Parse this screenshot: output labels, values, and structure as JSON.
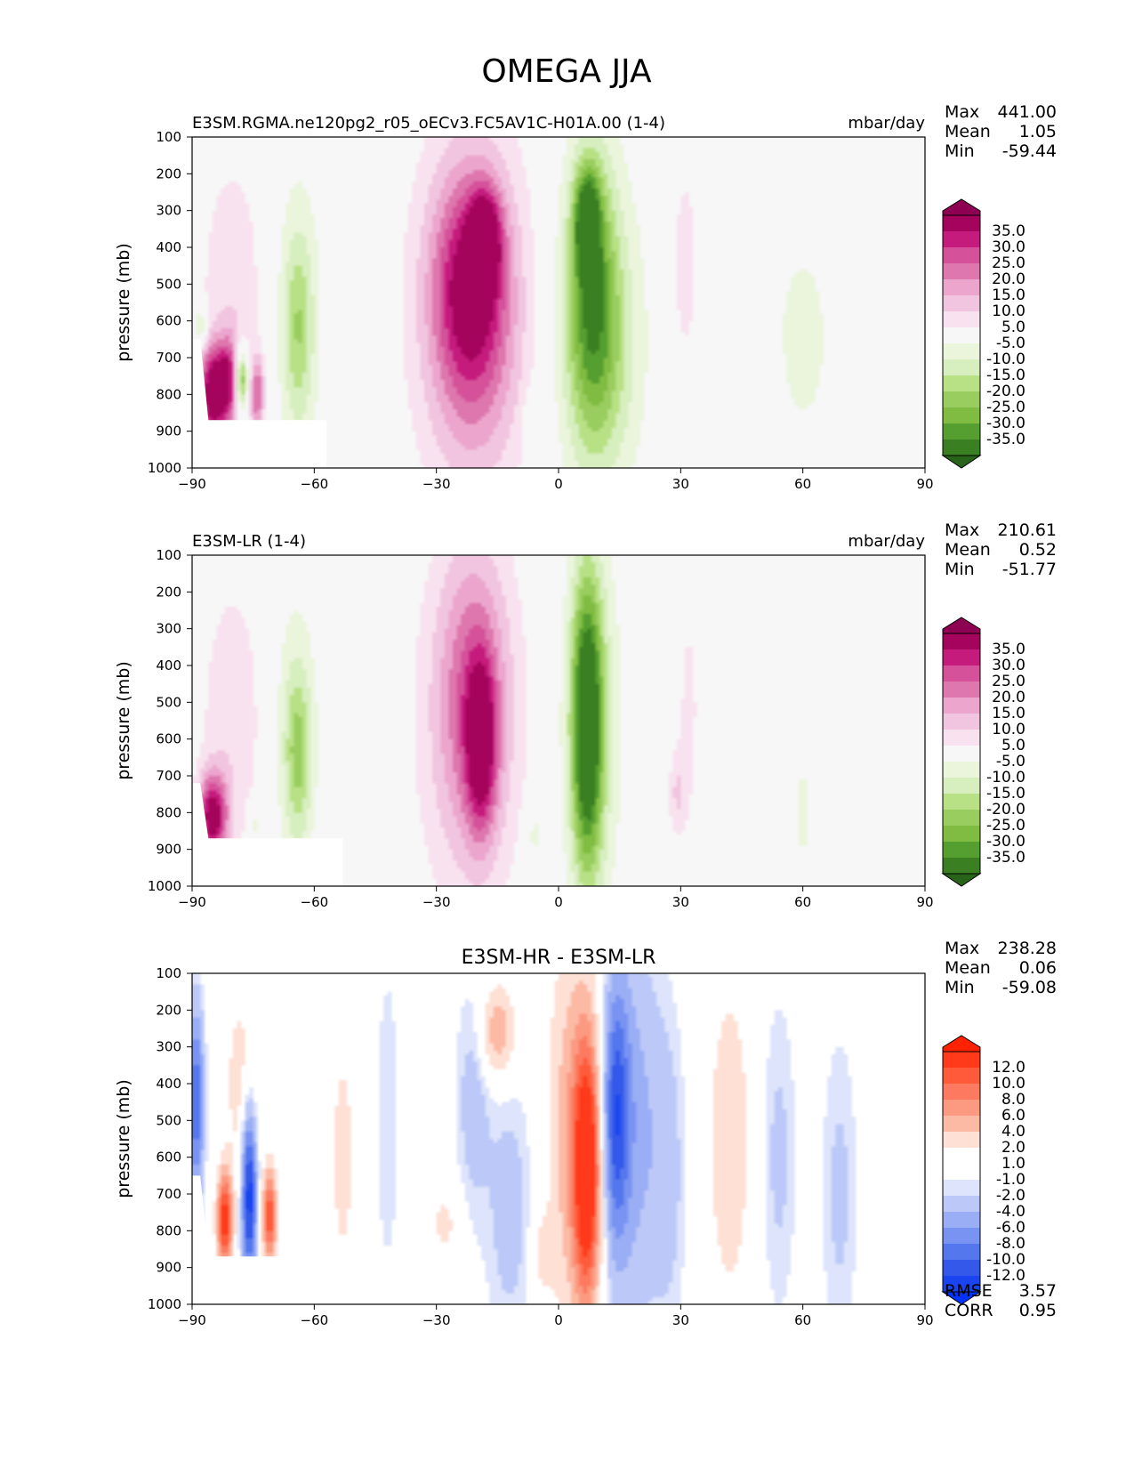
{
  "figure_title": "OMEGA JJA",
  "colors": {
    "background": "#f7f7f6",
    "diff_background": "#fdfdfd",
    "frame": "#000000",
    "mask": "#ffffff"
  },
  "icons": [
    "colorbar-extend-triangle"
  ],
  "chart_data": [
    {
      "type": "heatmap",
      "name": "panel-test",
      "title": "",
      "left_title": "E3SM.RGMA.ne120pg2_r05_oECv3.FC5AV1C-H01A.00 (1-4)",
      "units": "mbar/day",
      "xlabel": "",
      "ylabel": "pressure (mb)",
      "xlim": [
        -90,
        90
      ],
      "ylim": [
        1000,
        100
      ],
      "x_ticks": [
        -90,
        -60,
        -30,
        0,
        30,
        60,
        90
      ],
      "x_tick_labels": [
        "−90",
        "−60",
        "−30",
        "0",
        "30",
        "60",
        "90"
      ],
      "y_ticks": [
        100,
        200,
        300,
        400,
        500,
        600,
        700,
        800,
        900,
        1000
      ],
      "y_tick_labels": [
        "100",
        "200",
        "300",
        "400",
        "500",
        "600",
        "700",
        "800",
        "900",
        "1000"
      ],
      "stats": {
        "labels": [
          "Max",
          "Mean",
          "Min"
        ],
        "values": [
          "441.00",
          "1.05",
          "-59.44"
        ]
      },
      "colorbar": {
        "labels": [
          "35.0",
          "30.0",
          "25.0",
          "20.0",
          "15.0",
          "10.0",
          "5.0",
          "-5.0",
          "-10.0",
          "-15.0",
          "-20.0",
          "-25.0",
          "-30.0",
          "-35.0"
        ],
        "top_color": "#8e0152",
        "bottom_color": "#276419",
        "colors": [
          "#a4045c",
          "#c51b7d",
          "#d5519a",
          "#de77ae",
          "#eca6cd",
          "#f1c5e0",
          "#f9e2ef",
          "#f7f7f7",
          "#eaf5dc",
          "#d7eebf",
          "#b8e186",
          "#9acd5f",
          "#7fbc41",
          "#559e30",
          "#3a7f21"
        ]
      },
      "features": [
        {
          "x": -18,
          "p": 380,
          "v": 30,
          "sx": 2.5,
          "sp": 90
        },
        {
          "x": -22,
          "p": 500,
          "v": 20,
          "sx": 6,
          "sp": 200
        },
        {
          "x": -21,
          "p": 600,
          "v": 16,
          "sx": 8,
          "sp": 300
        },
        {
          "x": -21,
          "p": 550,
          "v": 9,
          "sx": 12,
          "sp": 390
        },
        {
          "x": 7,
          "p": 330,
          "v": -33,
          "sx": 2,
          "sp": 90
        },
        {
          "x": 8,
          "p": 500,
          "v": -22,
          "sx": 4,
          "sp": 260
        },
        {
          "x": 9,
          "p": 600,
          "v": -12,
          "sx": 8,
          "sp": 360
        },
        {
          "x": 11,
          "p": 700,
          "v": -8,
          "sx": 6,
          "sp": 220
        },
        {
          "x": -64,
          "p": 620,
          "v": -14,
          "sx": 2.5,
          "sp": 180
        },
        {
          "x": -64,
          "p": 580,
          "v": -7,
          "sx": 5,
          "sp": 330
        },
        {
          "x": -78,
          "p": 760,
          "v": -35,
          "sx": 1.2,
          "sp": 60
        },
        {
          "x": -85,
          "p": 800,
          "v": 40,
          "sx": 2.5,
          "sp": 90
        },
        {
          "x": -81,
          "p": 760,
          "v": 26,
          "sx": 2,
          "sp": 80
        },
        {
          "x": -74,
          "p": 800,
          "v": 24,
          "sx": 1.2,
          "sp": 70
        },
        {
          "x": -80,
          "p": 520,
          "v": 9,
          "sx": 6,
          "sp": 280
        },
        {
          "x": -88,
          "p": 620,
          "v": -15,
          "sx": 1.2,
          "sp": 40
        },
        {
          "x": 31,
          "p": 450,
          "v": 7,
          "sx": 3,
          "sp": 260
        },
        {
          "x": 48,
          "p": 760,
          "v": 4,
          "sx": 3,
          "sp": 60
        },
        {
          "x": 60,
          "p": 650,
          "v": -6,
          "sx": 8,
          "sp": 320
        },
        {
          "x": -7,
          "p": 880,
          "v": -6,
          "sx": 1.2,
          "sp": 60
        },
        {
          "x": 75,
          "p": 860,
          "v": 6,
          "sx": 1,
          "sp": 50
        }
      ],
      "mask": {
        "lon_max": -57,
        "p_min": 870,
        "slope_top_lon": -88,
        "slope_top_p": 650
      }
    },
    {
      "type": "heatmap",
      "name": "panel-ref",
      "title": "",
      "left_title": "E3SM-LR (1-4)",
      "units": "mbar/day",
      "xlabel": "",
      "ylabel": "pressure (mb)",
      "xlim": [
        -90,
        90
      ],
      "ylim": [
        1000,
        100
      ],
      "x_ticks": [
        -90,
        -60,
        -30,
        0,
        30,
        60,
        90
      ],
      "x_tick_labels": [
        "−90",
        "−60",
        "−30",
        "0",
        "30",
        "60",
        "90"
      ],
      "y_ticks": [
        100,
        200,
        300,
        400,
        500,
        600,
        700,
        800,
        900,
        1000
      ],
      "y_tick_labels": [
        "100",
        "200",
        "300",
        "400",
        "500",
        "600",
        "700",
        "800",
        "900",
        "1000"
      ],
      "stats": {
        "labels": [
          "Max",
          "Mean",
          "Min"
        ],
        "values": [
          "210.61",
          "0.52",
          "-51.77"
        ]
      },
      "colorbar": {
        "labels": [
          "35.0",
          "30.0",
          "25.0",
          "20.0",
          "15.0",
          "10.0",
          "5.0",
          "-5.0",
          "-10.0",
          "-15.0",
          "-20.0",
          "-25.0",
          "-30.0",
          "-35.0"
        ],
        "top_color": "#8e0152",
        "bottom_color": "#276419",
        "colors": [
          "#a4045c",
          "#c51b7d",
          "#d5519a",
          "#de77ae",
          "#eca6cd",
          "#f1c5e0",
          "#f9e2ef",
          "#f7f7f7",
          "#eaf5dc",
          "#d7eebf",
          "#b8e186",
          "#9acd5f",
          "#7fbc41",
          "#559e30",
          "#3a7f21"
        ]
      },
      "features": [
        {
          "x": -19,
          "p": 620,
          "v": 28,
          "sx": 2.5,
          "sp": 160
        },
        {
          "x": -21,
          "p": 480,
          "v": 18,
          "sx": 6,
          "sp": 280
        },
        {
          "x": -22,
          "p": 560,
          "v": 10,
          "sx": 10,
          "sp": 390
        },
        {
          "x": 7,
          "p": 560,
          "v": -40,
          "sx": 2.5,
          "sp": 260
        },
        {
          "x": 8,
          "p": 560,
          "v": -14,
          "sx": 5,
          "sp": 390
        },
        {
          "x": -64,
          "p": 640,
          "v": -16,
          "sx": 2.2,
          "sp": 160
        },
        {
          "x": -65,
          "p": 580,
          "v": -8,
          "sx": 4.5,
          "sp": 300
        },
        {
          "x": -85,
          "p": 810,
          "v": 38,
          "sx": 2.5,
          "sp": 80
        },
        {
          "x": -80,
          "p": 560,
          "v": 9,
          "sx": 6,
          "sp": 300
        },
        {
          "x": -75,
          "p": 830,
          "v": -10,
          "sx": 1,
          "sp": 40
        },
        {
          "x": 32,
          "p": 520,
          "v": 6,
          "sx": 2.5,
          "sp": 300
        },
        {
          "x": 29,
          "p": 750,
          "v": 9,
          "sx": 1.5,
          "sp": 80
        },
        {
          "x": 60,
          "p": 800,
          "v": -6,
          "sx": 2,
          "sp": 170
        },
        {
          "x": -6,
          "p": 860,
          "v": -8,
          "sx": 1.5,
          "sp": 70
        }
      ],
      "mask": {
        "lon_max": -53,
        "p_min": 870,
        "slope_top_lon": -88,
        "slope_top_p": 720
      }
    },
    {
      "type": "heatmap",
      "name": "panel-diff",
      "title": "E3SM-HR - E3SM-LR",
      "left_title": "",
      "units": "",
      "xlabel": "",
      "ylabel": "pressure (mb)",
      "xlim": [
        -90,
        90
      ],
      "ylim": [
        1000,
        100
      ],
      "x_ticks": [
        -90,
        -60,
        -30,
        0,
        30,
        60,
        90
      ],
      "x_tick_labels": [
        "−90",
        "−60",
        "−30",
        "0",
        "30",
        "60",
        "90"
      ],
      "y_ticks": [
        100,
        200,
        300,
        400,
        500,
        600,
        700,
        800,
        900,
        1000
      ],
      "y_tick_labels": [
        "100",
        "200",
        "300",
        "400",
        "500",
        "600",
        "700",
        "800",
        "900",
        "1000"
      ],
      "stats": {
        "labels": [
          "Max",
          "Mean",
          "Min"
        ],
        "values": [
          "238.28",
          "0.06",
          "-59.08"
        ]
      },
      "metrics": {
        "labels": [
          "RMSE",
          "CORR"
        ],
        "values": [
          "3.57",
          "0.95"
        ]
      },
      "colorbar": {
        "labels": [
          "12.0",
          "10.0",
          "8.0",
          "6.0",
          "4.0",
          "2.0",
          "1.0",
          "-1.0",
          "-2.0",
          "-4.0",
          "-6.0",
          "-8.0",
          "-10.0",
          "-12.0"
        ],
        "top_color": "#ff2200",
        "bottom_color": "#0033ff",
        "colors": [
          "#ff3a1a",
          "#ff5a3a",
          "#fd7a60",
          "#fb9a80",
          "#fcbaa5",
          "#fee0d5",
          "#ffffff",
          "#ffffff",
          "#dde4fb",
          "#bcc9f8",
          "#9aaef5",
          "#7893f2",
          "#5577ee",
          "#3358ea",
          "#1a44f0"
        ]
      },
      "features": [
        {
          "x": 7,
          "p": 640,
          "v": 14,
          "sx": 2.2,
          "sp": 240
        },
        {
          "x": 4,
          "p": 540,
          "v": 6,
          "sx": 4.5,
          "sp": 380
        },
        {
          "x": 14,
          "p": 480,
          "v": -9,
          "sx": 2.2,
          "sp": 250
        },
        {
          "x": 18,
          "p": 520,
          "v": -5,
          "sx": 5,
          "sp": 380
        },
        {
          "x": -15,
          "p": 260,
          "v": 6,
          "sx": 3,
          "sp": 90
        },
        {
          "x": -21,
          "p": 450,
          "v": -3,
          "sx": 3,
          "sp": 220
        },
        {
          "x": -12,
          "p": 750,
          "v": -3,
          "sx": 4,
          "sp": 250
        },
        {
          "x": -4,
          "p": 860,
          "v": 3,
          "sx": 2,
          "sp": 70
        },
        {
          "x": -28,
          "p": 780,
          "v": 2.5,
          "sx": 3,
          "sp": 80
        },
        {
          "x": 42,
          "p": 560,
          "v": 3.5,
          "sx": 4,
          "sp": 330
        },
        {
          "x": 54,
          "p": 600,
          "v": -2.5,
          "sx": 3,
          "sp": 300
        },
        {
          "x": 27,
          "p": 650,
          "v": -2.5,
          "sx": 3,
          "sp": 300
        },
        {
          "x": 69,
          "p": 700,
          "v": -2.5,
          "sx": 3,
          "sp": 300
        },
        {
          "x": -53,
          "p": 600,
          "v": 2.5,
          "sx": 3,
          "sp": 320
        },
        {
          "x": -42,
          "p": 500,
          "v": -2,
          "sx": 2,
          "sp": 300
        },
        {
          "x": -82,
          "p": 770,
          "v": 14,
          "sx": 1.3,
          "sp": 90
        },
        {
          "x": -76,
          "p": 700,
          "v": -14,
          "sx": 1.3,
          "sp": 170
        },
        {
          "x": -71,
          "p": 760,
          "v": 12,
          "sx": 1.2,
          "sp": 90
        },
        {
          "x": -89,
          "p": 450,
          "v": -10,
          "sx": 1.3,
          "sp": 180
        },
        {
          "x": -78,
          "p": 400,
          "v": 3,
          "sx": 3,
          "sp": 200
        },
        {
          "x": 87,
          "p": 500,
          "v": 2,
          "sx": 2,
          "sp": 250
        }
      ],
      "mask": {
        "lon_max": -53,
        "p_min": 870,
        "slope_top_lon": -88,
        "slope_top_p": 650
      }
    }
  ]
}
